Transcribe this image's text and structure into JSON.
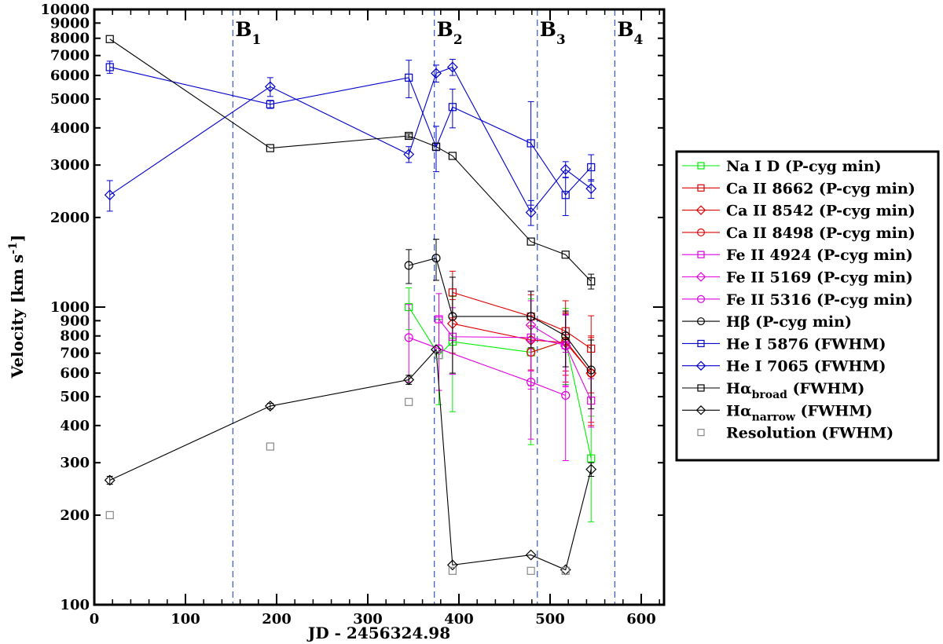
{
  "chart_data": {
    "type": "scatter",
    "title": "",
    "xlabel": "JD - 2456324.98",
    "ylabel": "Velocity [km s",
    "ylabel_sup": "-1",
    "ylabel_end": "]",
    "xlim": [
      0,
      625
    ],
    "ylim": [
      100,
      10000
    ],
    "yscale": "log",
    "x_ticks": [
      0,
      100,
      200,
      300,
      400,
      500,
      600
    ],
    "y_ticks": [
      100,
      200,
      300,
      400,
      500,
      600,
      700,
      800,
      900,
      1000,
      2000,
      3000,
      4000,
      5000,
      6000,
      7000,
      8000,
      9000,
      10000
    ],
    "legend_position": "right",
    "bands": [
      {
        "x": 152,
        "label": "B",
        "sub": "1"
      },
      {
        "x": 373,
        "label": "B",
        "sub": "2"
      },
      {
        "x": 486,
        "label": "B",
        "sub": "3"
      },
      {
        "x": 571,
        "label": "B",
        "sub": "4"
      }
    ],
    "series": [
      {
        "name": "Na I D (P-cyg min)",
        "color": "#00ee00",
        "marker": "square",
        "line": true,
        "x": [
          345,
          378,
          393,
          479,
          517,
          545
        ],
        "y": [
          1000,
          690,
          765,
          705,
          770,
          310
        ],
        "err": [
          160,
          220,
          320,
          360,
          220,
          120
        ]
      },
      {
        "name": "Ca II 8662 (P-cyg min)",
        "color": "#dd0000",
        "marker": "square",
        "line": true,
        "x": [
          393,
          479,
          517,
          545
        ],
        "y": [
          1120,
          930,
          830,
          725
        ],
        "err": [
          200,
          170,
          220,
          210
        ]
      },
      {
        "name": "Ca II 8542 (P-cyg min)",
        "color": "#dd0000",
        "marker": "diamond",
        "line": true,
        "x": [
          393,
          479,
          517,
          545
        ],
        "y": [
          880,
          775,
          760,
          600
        ],
        "err": [
          180,
          160,
          200,
          200
        ]
      },
      {
        "name": "Ca II 8498 (P-cyg min)",
        "color": "#dd0000",
        "marker": "circle",
        "line": true,
        "x": [
          479,
          517,
          545
        ],
        "y": [
          705,
          770,
          600
        ],
        "err": [
          160,
          180,
          190
        ]
      },
      {
        "name": "Fe II 4924 (P-cyg min)",
        "color": "#e000e0",
        "marker": "square",
        "line": true,
        "x": [
          378,
          393,
          479,
          517,
          545
        ],
        "y": [
          910,
          795,
          790,
          745,
          485
        ],
        "err": [
          200,
          200,
          260,
          200,
          90
        ]
      },
      {
        "name": "Fe II 5169 (P-cyg min)",
        "color": "#e000e0",
        "marker": "diamond",
        "line": true,
        "x": [
          479,
          517
        ],
        "y": [
          870,
          740
        ],
        "err": [
          260,
          200
        ]
      },
      {
        "name": "Fe II 5316 (P-cyg min)",
        "color": "#e000e0",
        "marker": "circle",
        "line": true,
        "x": [
          345,
          378,
          479,
          517
        ],
        "y": [
          790,
          725,
          560,
          505
        ],
        "err": [
          230,
          200,
          200,
          200
        ]
      },
      {
        "name": "Hβ (P-cyg min)",
        "color": "#000000",
        "marker": "circle",
        "line": true,
        "x": [
          345,
          375,
          393,
          479,
          517,
          545
        ],
        "y": [
          1380,
          1460,
          930,
          930,
          800,
          615
        ],
        "err": [
          180,
          230,
          330,
          200,
          170,
          160
        ]
      },
      {
        "name": "He I 5876 (FWHM)",
        "color": "#0000cc",
        "marker": "square",
        "line": true,
        "x": [
          17,
          193,
          345,
          375,
          393,
          479,
          517,
          545
        ],
        "y": [
          6400,
          4800,
          5900,
          3450,
          4700,
          3550,
          2380,
          2950
        ],
        "err": [
          300,
          150,
          850,
          600,
          700,
          1350,
          350,
          300
        ]
      },
      {
        "name": "He I 7065 (FWHM)",
        "color": "#0000cc",
        "marker": "diamond",
        "line": true,
        "x": [
          17,
          193,
          345,
          375,
          393,
          479,
          517,
          545
        ],
        "y": [
          2380,
          5500,
          3260,
          6100,
          6400,
          2080,
          2900,
          2500
        ],
        "err": [
          280,
          400,
          200,
          400,
          400,
          200,
          180,
          180
        ]
      },
      {
        "name": "Hα",
        "name_sub": "broad",
        "name_tail": " (FWHM)",
        "color": "#000000",
        "marker": "square",
        "line": true,
        "x": [
          17,
          193,
          345,
          375,
          393,
          479,
          517,
          545
        ],
        "y": [
          7950,
          3420,
          3760,
          3460,
          3220,
          1660,
          1500,
          1220
        ],
        "err": [
          0,
          0,
          60,
          0,
          0,
          0,
          0,
          70
        ]
      },
      {
        "name": "Hα",
        "name_sub": "narrow",
        "name_tail": " (FWHM)",
        "color": "#000000",
        "marker": "diamond",
        "line": true,
        "x": [
          17,
          193,
          345,
          375,
          393,
          479,
          517,
          545
        ],
        "y": [
          262,
          465,
          570,
          720,
          136,
          147,
          131,
          285
        ],
        "err": [
          8,
          10,
          20,
          0,
          0,
          0,
          0,
          15
        ]
      },
      {
        "name": "Resolution (FWHM)",
        "color": "#888888",
        "marker": "square",
        "line": false,
        "x": [
          17,
          193,
          345,
          378,
          393,
          479,
          517
        ],
        "y": [
          200,
          340,
          480,
          690,
          130,
          130,
          130
        ],
        "err": [
          0,
          0,
          0,
          0,
          0,
          0,
          0
        ]
      }
    ]
  }
}
